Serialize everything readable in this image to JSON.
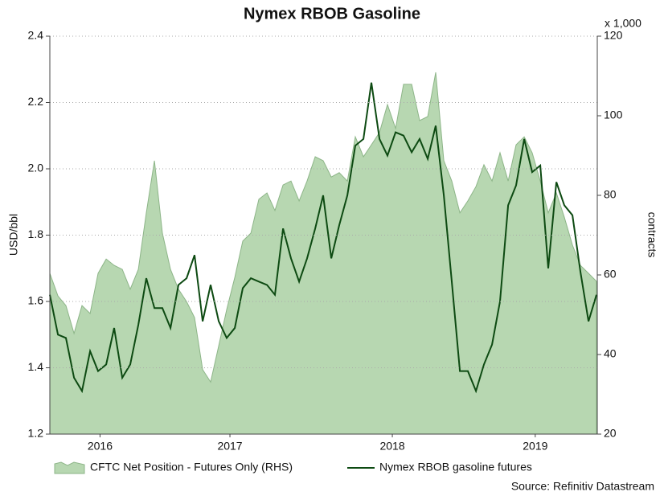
{
  "chart_data": {
    "type": "line",
    "title": "Nymex RBOB Gasoline",
    "y_label": "USD/bbl",
    "y2_label": "contracts",
    "y2_unit": "x 1,000",
    "source": "Source: Refinitiv Datastream",
    "grid": true,
    "x": [
      2016.391,
      2016.441,
      2016.49,
      2016.54,
      2016.589,
      2016.639,
      2016.688,
      2016.738,
      2016.787,
      2016.837,
      2016.886,
      2016.936,
      2016.985,
      2017.035,
      2017.084,
      2017.134,
      2017.183,
      2017.233,
      2017.282,
      2017.332,
      2017.381,
      2017.431,
      2017.48,
      2017.53,
      2017.579,
      2017.629,
      2017.678,
      2017.728,
      2017.777,
      2017.827,
      2017.876,
      2017.926,
      2017.975,
      2018.025,
      2018.074,
      2018.124,
      2018.173,
      2018.223,
      2018.272,
      2018.322,
      2018.371,
      2018.421,
      2018.47,
      2018.52,
      2018.569,
      2018.619,
      2018.668,
      2018.718,
      2018.767,
      2018.817,
      2018.866,
      2018.916,
      2018.965,
      2019.015,
      2019.064,
      2019.114,
      2019.163,
      2019.213,
      2019.262,
      2019.312,
      2019.361,
      2019.411,
      2019.46,
      2019.51,
      2019.559,
      2019.609,
      2019.658,
      2019.708,
      2019.757
    ],
    "xlim": [
      2016.391,
      2019.762
    ],
    "xticks": [
      {
        "value": 2016.7,
        "label": "2016"
      },
      {
        "value": 2017.5,
        "label": "2017"
      },
      {
        "value": 2018.5,
        "label": "2018"
      },
      {
        "value": 2019.38,
        "label": "2019"
      }
    ],
    "ylim": [
      1.2,
      2.4
    ],
    "yticks": [
      1.2,
      1.4,
      1.6,
      1.8,
      {
        "value": 2,
        "label": "2.0"
      },
      2.2,
      2.4
    ],
    "y2lim": [
      20,
      120
    ],
    "y2ticks": [
      20,
      40,
      60,
      80,
      100,
      120
    ],
    "series": [
      {
        "name": "CFTC Net Position - Futures Only (RHS)",
        "type": "area",
        "axis": "y2",
        "color": "#b7d7b1",
        "edge_color": "#8db588",
        "values": [
          60.4,
          54.7,
          52.3,
          45.3,
          52.3,
          50.3,
          60.4,
          64.0,
          62.4,
          61.4,
          56.4,
          61.4,
          75.6,
          88.7,
          70.5,
          61.4,
          56.4,
          53.3,
          49.3,
          36.2,
          33.1,
          42.2,
          51.3,
          59.4,
          68.5,
          70.5,
          79.0,
          80.6,
          76.2,
          82.6,
          83.6,
          78.6,
          83.6,
          89.7,
          88.7,
          84.6,
          85.7,
          83.6,
          94.7,
          89.7,
          92.7,
          95.8,
          102.8,
          96.8,
          107.9,
          107.9,
          98.8,
          99.8,
          110.9,
          88.7,
          83.6,
          75.6,
          78.6,
          82.2,
          87.7,
          83.6,
          90.7,
          83.6,
          92.7,
          94.7,
          90.7,
          83.6,
          75.6,
          80.6,
          74.5,
          67.5,
          62.4,
          60.4,
          58.4
        ]
      },
      {
        "name": "Nymex RBOB gasoline futures",
        "type": "line",
        "axis": "y",
        "color": "#0d4a12",
        "values": [
          1.62,
          1.5,
          1.49,
          1.37,
          1.33,
          1.45,
          1.39,
          1.41,
          1.52,
          1.37,
          1.41,
          1.53,
          1.67,
          1.58,
          1.58,
          1.52,
          1.65,
          1.67,
          1.74,
          1.54,
          1.65,
          1.54,
          1.49,
          1.52,
          1.64,
          1.67,
          1.66,
          1.65,
          1.62,
          1.82,
          1.73,
          1.66,
          1.73,
          1.82,
          1.92,
          1.73,
          1.83,
          1.92,
          2.07,
          2.09,
          2.26,
          2.09,
          2.04,
          2.11,
          2.1,
          2.05,
          2.09,
          2.03,
          2.13,
          1.92,
          1.66,
          1.39,
          1.39,
          1.33,
          1.41,
          1.47,
          1.6,
          1.89,
          1.95,
          2.09,
          1.99,
          2.01,
          1.7,
          1.96,
          1.89,
          1.86,
          1.69,
          1.54,
          1.62
        ]
      }
    ]
  }
}
